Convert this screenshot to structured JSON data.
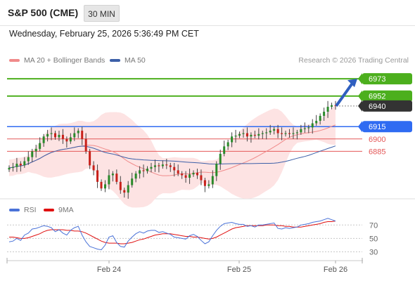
{
  "header": {
    "title": "S&P 500 (CME)",
    "timeframe_button": "30 MIN",
    "datetime": "Wednesday, February 25, 2026 5:36:49 PM CET"
  },
  "legend": {
    "ma20_label": "MA 20 + Bollinger Bands",
    "ma50_label": "MA 50",
    "credit": "Research © 2026 Trading Central"
  },
  "colors": {
    "resistance": "#4caf1d",
    "support": "#e45858",
    "pivot": "#2f6bf2",
    "last": "#333333",
    "ma20": "#f08a8a",
    "ma50": "#3c5fa8",
    "bollinger_fill": "#fde3e3",
    "rsi": "#4a72d8",
    "rsi_ma": "#e01010",
    "arrow": "#2f5fbf"
  },
  "chart_data": [
    {
      "type": "candlestick",
      "title": "S&P 500 (CME)",
      "interval": "30 MIN",
      "x_tick_labels": [
        "Feb 24",
        "Feb 25",
        "Feb 26"
      ],
      "y_range": [
        6830,
        6985
      ],
      "levels": [
        {
          "label": "6973",
          "value": 6973,
          "role": "resistance"
        },
        {
          "label": "6952",
          "value": 6952,
          "role": "resistance"
        },
        {
          "label": "6940",
          "value": 6940,
          "role": "last"
        },
        {
          "label": "6915",
          "value": 6915,
          "role": "pivot"
        },
        {
          "label": "6900",
          "value": 6900,
          "role": "support"
        },
        {
          "label": "6885",
          "value": 6885,
          "role": "support"
        }
      ],
      "target_arrow": {
        "from": 6940,
        "to": 6973
      },
      "series": [
        {
          "name": "MA 20 + Bollinger Bands",
          "kind": "ma20_bands"
        },
        {
          "name": "MA 50",
          "kind": "ma50"
        }
      ],
      "close": [
        6865,
        6866,
        6870,
        6868,
        6873,
        6878,
        6885,
        6888,
        6895,
        6903,
        6906,
        6907,
        6902,
        6905,
        6900,
        6897,
        6902,
        6907,
        6910,
        6900,
        6885,
        6868,
        6862,
        6848,
        6840,
        6845,
        6856,
        6858,
        6848,
        6838,
        6835,
        6844,
        6852,
        6858,
        6862,
        6861,
        6864,
        6866,
        6868,
        6867,
        6869,
        6868,
        6866,
        6862,
        6858,
        6856,
        6853,
        6857,
        6859,
        6856,
        6850,
        6843,
        6845,
        6855,
        6870,
        6882,
        6891,
        6896,
        6903,
        6904,
        6906,
        6907,
        6903,
        6905,
        6904,
        6906,
        6907,
        6908,
        6910,
        6912,
        6907,
        6906,
        6907,
        6906,
        6907,
        6908,
        6912,
        6913,
        6914,
        6919,
        6922,
        6928,
        6933,
        6939,
        6941,
        6940
      ],
      "ohlc_range": [
        6830,
        6950
      ]
    },
    {
      "type": "line",
      "name": "RSI",
      "series": [
        {
          "name": "RSI"
        },
        {
          "name": "9MA"
        }
      ],
      "y_ticks": [
        70,
        50,
        30
      ],
      "y_range": [
        20,
        85
      ],
      "rsi": [
        45,
        46,
        50,
        47,
        55,
        58,
        64,
        65,
        67,
        69,
        68,
        66,
        60,
        63,
        58,
        55,
        62,
        66,
        68,
        55,
        45,
        38,
        36,
        34,
        33,
        40,
        52,
        54,
        44,
        38,
        37,
        46,
        52,
        57,
        60,
        58,
        61,
        62,
        62,
        59,
        60,
        58,
        56,
        52,
        51,
        50,
        49,
        54,
        56,
        53,
        47,
        42,
        45,
        54,
        62,
        68,
        72,
        73,
        74,
        72,
        71,
        71,
        68,
        69,
        67,
        70,
        70,
        71,
        72,
        73,
        65,
        64,
        66,
        65,
        66,
        67,
        70,
        71,
        72,
        74,
        75,
        76,
        78,
        80,
        78,
        76
      ],
      "rsi_ma": [
        52,
        52,
        51,
        50,
        50,
        51,
        53,
        55,
        57,
        60,
        62,
        63,
        63,
        63,
        63,
        62,
        62,
        61,
        61,
        60,
        58,
        55,
        52,
        49,
        46,
        44,
        43,
        43,
        43,
        42,
        42,
        43,
        44,
        46,
        48,
        49,
        51,
        53,
        55,
        56,
        57,
        57,
        57,
        56,
        55,
        54,
        53,
        53,
        52,
        52,
        51,
        50,
        49,
        50,
        52,
        55,
        58,
        61,
        64,
        66,
        67,
        68,
        69,
        69,
        69,
        69,
        69,
        70,
        70,
        70,
        69,
        69,
        68,
        68,
        67,
        67,
        67,
        68,
        69,
        70,
        71,
        72,
        74,
        75,
        75,
        76
      ]
    }
  ]
}
